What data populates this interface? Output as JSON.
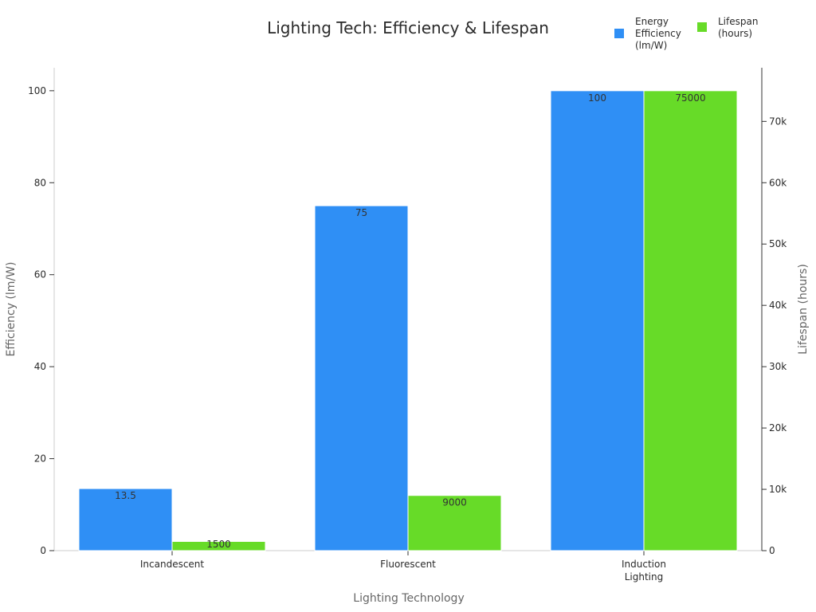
{
  "chart_data": {
    "type": "bar",
    "title": "Lighting Tech: Efficiency & Lifespan",
    "xlabel": "Lighting Technology",
    "ylabel_left": "Efficiency (lm/W)",
    "ylabel_right": "Lifespan (hours)",
    "categories": [
      [
        "Incandescent"
      ],
      [
        "Fluorescent"
      ],
      [
        "Induction",
        "Lighting"
      ]
    ],
    "ylim_left": [
      0,
      105
    ],
    "ylim_right": [
      0,
      78750
    ],
    "left_ticks": [
      "0",
      "20",
      "40",
      "60",
      "80",
      "100"
    ],
    "left_tick_values": [
      0,
      20,
      40,
      60,
      80,
      100
    ],
    "right_ticks": [
      "0",
      "10k",
      "20k",
      "30k",
      "40k",
      "50k",
      "60k",
      "70k"
    ],
    "right_tick_values": [
      0,
      10000,
      20000,
      30000,
      40000,
      50000,
      60000,
      70000
    ],
    "series": [
      {
        "name": "Energy Efficiency (lm/W)",
        "legend_lines": [
          "Energy",
          "Efficiency",
          "(lm/W)"
        ],
        "axis": "left",
        "color": "#2f8ff5",
        "values": [
          13.5,
          75,
          100
        ],
        "labels": [
          "13.5",
          "75",
          "100"
        ]
      },
      {
        "name": "Lifespan (hours)",
        "legend_lines": [
          "Lifespan",
          "(hours)"
        ],
        "axis": "right",
        "color": "#67db28",
        "values": [
          1500,
          9000,
          75000
        ],
        "labels": [
          "1500",
          "9000",
          "75000"
        ]
      }
    ],
    "legend_position": "top-right",
    "grid": false
  }
}
